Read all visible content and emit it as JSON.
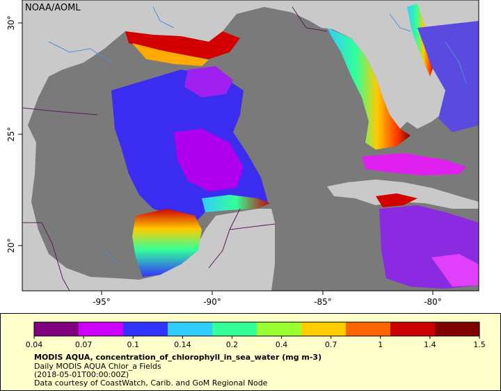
{
  "credit": "NOAA/AOML",
  "map": {
    "lon_ticks": [
      "-95°",
      "-90°",
      "-85°",
      "-80°"
    ],
    "lat_ticks": [
      "30°",
      "25°",
      "20°"
    ],
    "colors": {
      "land": "#c9c9c9",
      "no_data": "#7a7a7a",
      "river": "#4f8fd8",
      "border": "#5a1c5a"
    }
  },
  "legend": {
    "title": "MODIS AQUA, concentration_of_chlorophyll_in_sea_water (mg m-3)",
    "subtitle": "Daily MODIS AQUA Chlor_a Fields",
    "date": "(2018-05-01T00:00:00Z)",
    "source": "Data courtesy of CoastWatch, Carib. and GoM Regional Node",
    "tick_labels": [
      "0.04",
      "0.07",
      "0.1",
      "0.14",
      "0.2",
      "0.4",
      "0.7",
      "1",
      "1.4",
      "1.5"
    ],
    "colors": [
      "#800080",
      "#cc00ff",
      "#3333ff",
      "#33ccff",
      "#33ff99",
      "#99ff33",
      "#ffcc00",
      "#ff6600",
      "#cc0000",
      "#800000"
    ]
  }
}
